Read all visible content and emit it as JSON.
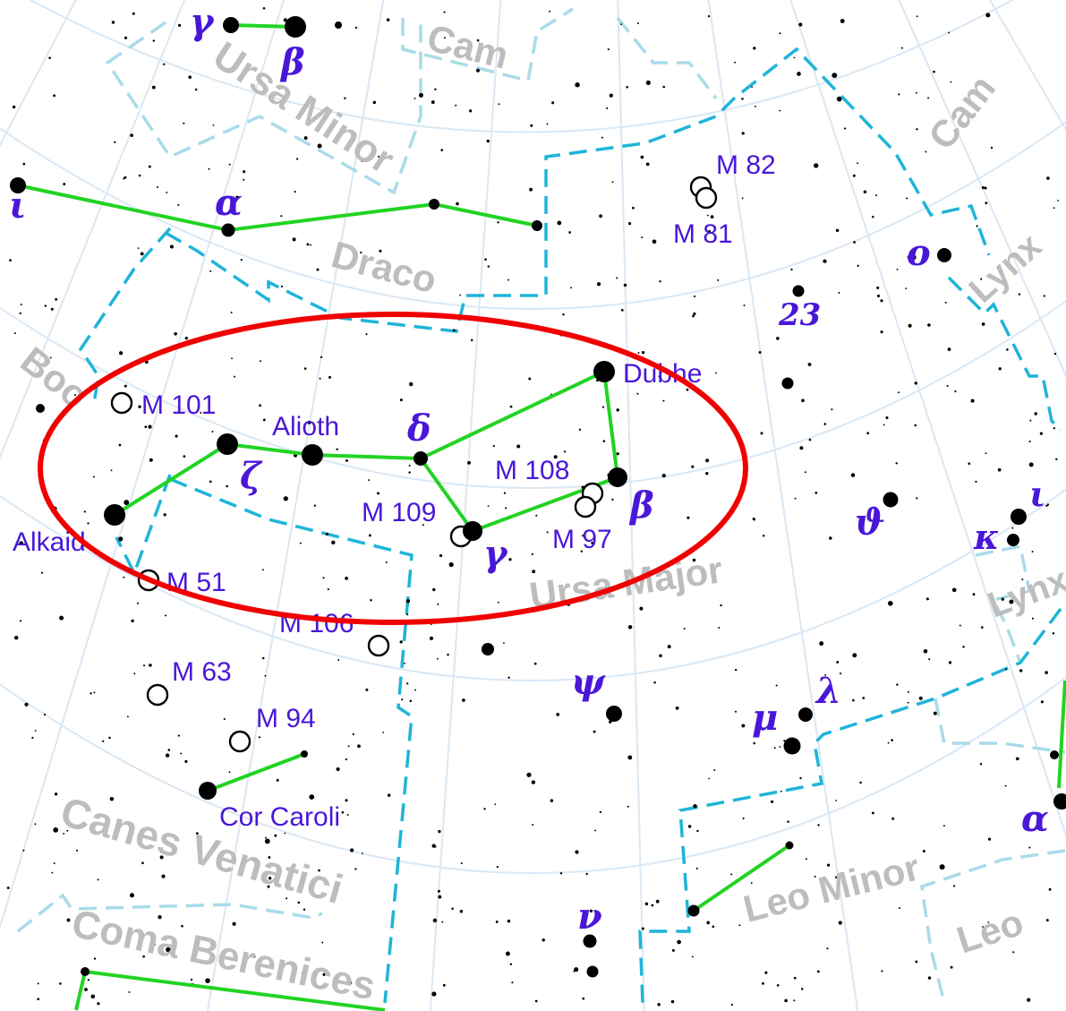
{
  "colors": {
    "background": "#ffffff",
    "grid": "#d9e8f5",
    "boundary_primary": "#1fb4d9",
    "boundary_secondary": "#a9dbe8",
    "stick_figure": "#22d322",
    "label": "#4a17d8",
    "constellation_name": "#bdbdbd",
    "highlight": "#f00000"
  },
  "constellations": {
    "cam_top": "Cam",
    "ursa_minor": "Ursa Minor",
    "cam_right": "Cam",
    "draco": "Draco",
    "lynx_upper": "Lynx",
    "boo": "Boo",
    "ursa_major": "Ursa Major",
    "lynx_lower": "Lynx",
    "canes_venatici": "Canes Venatici",
    "leo_minor": "Leo Minor",
    "coma_berenices": "Coma Berenices",
    "leo": "Leo"
  },
  "star_names": {
    "dubhe": "Dubhe",
    "alioth": "Alioth",
    "alkaid": "Alkaid",
    "cor_caroli": "Cor Caroli"
  },
  "greek_labels": {
    "umi_gamma": "γ",
    "umi_beta": "β",
    "dra_iota": "ι",
    "dra_alpha": "α",
    "uma_o": "o",
    "uma_23": "23",
    "uma_delta": "δ",
    "uma_zeta": "ζ",
    "uma_beta": "β",
    "uma_gamma": "γ",
    "uma_theta": "ϑ",
    "lyn_iota": "ι",
    "lyn_kappa": "κ",
    "uma_lambda": "λ",
    "uma_mu": "μ",
    "uma_psi": "ψ",
    "lyn_alpha": "α",
    "uma_nu": "ν"
  },
  "messier": {
    "m82": "M 82",
    "m81": "M 81",
    "m101": "M 101",
    "m108": "M 108",
    "m109": "M 109",
    "m97": "M 97",
    "m51": "M 51",
    "m106": "M 106",
    "m63": "M 63",
    "m94": "M 94"
  },
  "highlight_target": "Big Dipper asterism (Ursa Major)"
}
